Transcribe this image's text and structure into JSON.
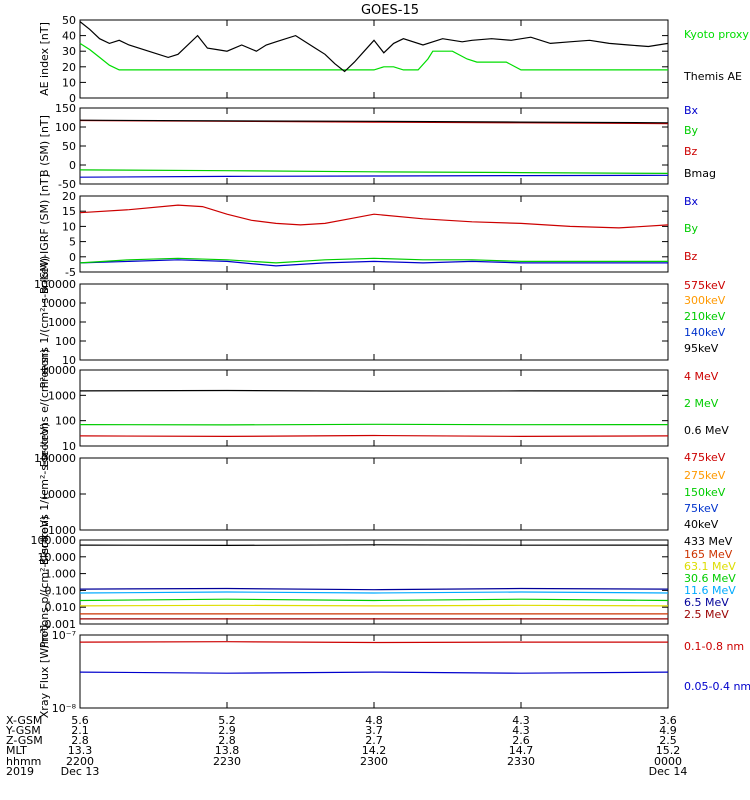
{
  "title": "GOES-15",
  "x_axis": {
    "tick_times": [
      "2200",
      "2230",
      "2300",
      "2330",
      "0000"
    ],
    "rows": [
      {
        "label": "X-GSM",
        "values": [
          "5.6",
          "5.2",
          "4.8",
          "4.3",
          "3.6"
        ]
      },
      {
        "label": "Y-GSM",
        "values": [
          "2.1",
          "2.9",
          "3.7",
          "4.3",
          "4.9"
        ]
      },
      {
        "label": "Z-GSM",
        "values": [
          "2.8",
          "2.8",
          "2.7",
          "2.6",
          "2.5"
        ]
      },
      {
        "label": "MLT",
        "values": [
          "13.3",
          "13.8",
          "14.2",
          "14.7",
          "15.2"
        ]
      },
      {
        "label": "hhmm",
        "values": [
          "2200",
          "2230",
          "2300",
          "2330",
          "0000"
        ]
      },
      {
        "label": "2019",
        "values": [
          "Dec 13",
          "",
          "",
          "",
          "Dec 14"
        ]
      }
    ]
  },
  "chart_data": [
    {
      "type": "line",
      "ylabel": "AE index [nT]",
      "ylim": [
        0,
        50
      ],
      "yticks": [
        0,
        10,
        20,
        30,
        40,
        50
      ],
      "log": false,
      "series": [
        {
          "name": "Kyoto proxy AE",
          "color": "#00dd00",
          "x": [
            0,
            2,
            4,
            6,
            8,
            55,
            60,
            62,
            64,
            66,
            69,
            71,
            72,
            76,
            79,
            81,
            84,
            87,
            90,
            120
          ],
          "y": [
            35,
            31,
            26,
            21,
            18,
            18,
            18,
            20,
            20,
            18,
            18,
            25,
            30,
            30,
            25,
            23,
            23,
            23,
            18,
            18
          ]
        },
        {
          "name": "Themis AE",
          "color": "#000000",
          "x": [
            0,
            2,
            4,
            6,
            8,
            10,
            14,
            18,
            20,
            24,
            26,
            28,
            30,
            33,
            36,
            38,
            40,
            44,
            48,
            50,
            52,
            54,
            56,
            58,
            60,
            62,
            64,
            66,
            70,
            74,
            78,
            80,
            84,
            88,
            92,
            96,
            100,
            104,
            108,
            112,
            116,
            120
          ],
          "y": [
            49,
            44,
            38,
            35,
            37,
            34,
            30,
            26,
            28,
            40,
            32,
            31,
            30,
            34,
            30,
            34,
            36,
            40,
            32,
            28,
            22,
            17,
            23,
            30,
            37,
            29,
            35,
            38,
            34,
            38,
            36,
            37,
            38,
            37,
            39,
            35,
            36,
            37,
            35,
            34,
            33,
            35
          ]
        }
      ],
      "legend": [
        "Kyoto proxy AE",
        "Themis AE"
      ]
    },
    {
      "type": "line",
      "ylabel": "B (SM) [nT]",
      "ylim": [
        -50,
        150
      ],
      "yticks": [
        -50,
        0,
        50,
        100,
        150
      ],
      "log": false,
      "series": [
        {
          "name": "Bx",
          "color": "#0000cc",
          "x": [
            0,
            30,
            60,
            90,
            120
          ],
          "y": [
            -32,
            -30,
            -29,
            -28,
            -27
          ]
        },
        {
          "name": "By",
          "color": "#00cc00",
          "x": [
            0,
            30,
            60,
            90,
            120
          ],
          "y": [
            -13,
            -15,
            -18,
            -20,
            -22
          ]
        },
        {
          "name": "Bz",
          "color": "#cc0000",
          "x": [
            0,
            30,
            60,
            90,
            120
          ],
          "y": [
            117,
            115,
            113,
            111,
            109
          ]
        },
        {
          "name": "Bmag",
          "color": "#000000",
          "x": [
            0,
            30,
            60,
            90,
            120
          ],
          "y": [
            118,
            116,
            115,
            113,
            111
          ]
        }
      ],
      "legend": [
        "Bx",
        "By",
        "Bz",
        "Bmag"
      ]
    },
    {
      "type": "line",
      "ylabel": "B (SM)-IGRF (SM) [nT]",
      "ylim": [
        -5,
        20
      ],
      "yticks": [
        -5,
        0,
        5,
        10,
        15,
        20
      ],
      "log": false,
      "series": [
        {
          "name": "Bx",
          "color": "#0000cc",
          "x": [
            0,
            10,
            20,
            30,
            40,
            50,
            60,
            70,
            80,
            90,
            100,
            110,
            120
          ],
          "y": [
            -2,
            -1.5,
            -1,
            -1.5,
            -3,
            -2,
            -1.5,
            -2,
            -1.5,
            -2,
            -2,
            -2,
            -2
          ]
        },
        {
          "name": "By",
          "color": "#00cc00",
          "x": [
            0,
            10,
            20,
            30,
            40,
            50,
            60,
            70,
            80,
            90,
            100,
            110,
            120
          ],
          "y": [
            -2,
            -1,
            -0.5,
            -1,
            -2,
            -1,
            -0.5,
            -1,
            -1,
            -1.5,
            -1.5,
            -1.5,
            -1.5
          ]
        },
        {
          "name": "Bz",
          "color": "#cc0000",
          "x": [
            0,
            10,
            20,
            25,
            30,
            35,
            40,
            45,
            50,
            55,
            60,
            70,
            80,
            90,
            100,
            110,
            120
          ],
          "y": [
            14.5,
            15.5,
            17,
            16.5,
            14,
            12,
            11,
            10.5,
            11,
            12.5,
            14,
            12.5,
            11.5,
            11,
            10,
            9.5,
            10.5
          ]
        }
      ],
      "legend": [
        "Bx",
        "By",
        "Bz"
      ]
    },
    {
      "type": "line",
      "ylabel": "Protons 1/(cm²-s-sr-keV)",
      "ylim": [
        10,
        100000
      ],
      "yticks": [
        10,
        100,
        1000,
        10000,
        100000
      ],
      "log": true,
      "series": [],
      "legend": [
        "575keV",
        "300keV",
        "210keV",
        "140keV",
        "95keV"
      ],
      "legend_colors": [
        "#cc0000",
        "#ff9900",
        "#00cc00",
        "#0033cc",
        "#000000"
      ]
    },
    {
      "type": "line",
      "ylabel": "Electrons e/(cm²-s-sr)",
      "ylim": [
        10,
        10000
      ],
      "yticks": [
        10,
        100,
        1000,
        10000
      ],
      "log": true,
      "series": [
        {
          "name": "4 MeV",
          "color": "#cc0000",
          "x": [
            0,
            30,
            60,
            90,
            120
          ],
          "y": [
            25,
            24,
            26,
            24,
            25
          ]
        },
        {
          "name": "2 MeV",
          "color": "#00cc00",
          "x": [
            0,
            30,
            60,
            90,
            120
          ],
          "y": [
            70,
            68,
            72,
            69,
            70
          ]
        },
        {
          "name": "0.6 MeV",
          "color": "#000000",
          "x": [
            0,
            30,
            60,
            90,
            120
          ],
          "y": [
            1500,
            1550,
            1450,
            1500,
            1480
          ]
        }
      ],
      "legend": [
        "4 MeV",
        "2 MeV",
        "0.6 MeV"
      ]
    },
    {
      "type": "line",
      "ylabel": "Electrons 1/(cm²-s-sr-keV)",
      "ylim": [
        1000,
        100000
      ],
      "yticks": [
        1000,
        10000,
        100000
      ],
      "log": true,
      "series": [],
      "legend": [
        "475keV",
        "275keV",
        "150keV",
        "75keV",
        "40keV"
      ],
      "legend_colors": [
        "#cc0000",
        "#ff9900",
        "#00cc00",
        "#0033cc",
        "#000000"
      ]
    },
    {
      "type": "line",
      "ylabel": "Protons p/(cm²-s-sr-keV)",
      "ylim": [
        0.001,
        100
      ],
      "yticks": [
        0.001,
        0.01,
        0.1,
        1,
        10,
        100
      ],
      "yticklabels": [
        "0.001",
        "0.010",
        "0.100",
        "1.000",
        "10.000",
        "100.000"
      ],
      "log": true,
      "series": [
        {
          "name": "433 MeV",
          "color": "#000000",
          "x": [
            0,
            30,
            60,
            90,
            120
          ],
          "y": [
            50,
            48,
            52,
            49,
            50
          ]
        },
        {
          "name": "165 MeV",
          "color": "#cc3300",
          "x": [
            0,
            30,
            60,
            90,
            120
          ],
          "y": [
            0.004,
            0.004,
            0.004,
            0.004,
            0.004
          ]
        },
        {
          "name": "63.1 MeV",
          "color": "#dddd00",
          "x": [
            0,
            30,
            60,
            90,
            120
          ],
          "y": [
            0.012,
            0.013,
            0.012,
            0.013,
            0.012
          ]
        },
        {
          "name": "30.6 MeV",
          "color": "#00cc00",
          "x": [
            0,
            30,
            60,
            90,
            120
          ],
          "y": [
            0.025,
            0.03,
            0.025,
            0.03,
            0.025
          ]
        },
        {
          "name": "11.6 MeV",
          "color": "#00aaff",
          "x": [
            0,
            30,
            60,
            90,
            120
          ],
          "y": [
            0.07,
            0.08,
            0.07,
            0.08,
            0.07
          ]
        },
        {
          "name": "6.5 MeV",
          "color": "#000099",
          "x": [
            0,
            30,
            60,
            90,
            120
          ],
          "y": [
            0.12,
            0.13,
            0.11,
            0.13,
            0.12
          ]
        },
        {
          "name": "2.5 MeV",
          "color": "#990000",
          "x": [
            0,
            30,
            60,
            90,
            120
          ],
          "y": [
            0.002,
            0.002,
            0.002,
            0.002,
            0.002
          ]
        }
      ],
      "legend": [
        "433 MeV",
        "165 MeV",
        "63.1 MeV",
        "30.6 MeV",
        "11.6 MeV",
        "6.5 MeV",
        "2.5 MeV"
      ]
    },
    {
      "type": "line",
      "ylabel": "Xray Flux [W/m²]",
      "ylim": [
        1e-08,
        1e-07
      ],
      "yticks": [
        1e-08,
        1e-07
      ],
      "yticklabels": [
        "10⁻⁸",
        "10⁻⁷"
      ],
      "log": true,
      "series": [
        {
          "name": "0.1-0.8 nm",
          "color": "#cc0000",
          "x": [
            0,
            30,
            60,
            90,
            120
          ],
          "y": [
            8e-08,
            8.1e-08,
            7.9e-08,
            8e-08,
            8e-08
          ]
        },
        {
          "name": "0.05-0.4 nm",
          "color": "#0000cc",
          "x": [
            0,
            30,
            60,
            90,
            120
          ],
          "y": [
            3.1e-08,
            3e-08,
            3.1e-08,
            3e-08,
            3.1e-08
          ]
        }
      ],
      "legend": [
        "0.1-0.8 nm",
        "0.05-0.4 nm"
      ]
    }
  ]
}
